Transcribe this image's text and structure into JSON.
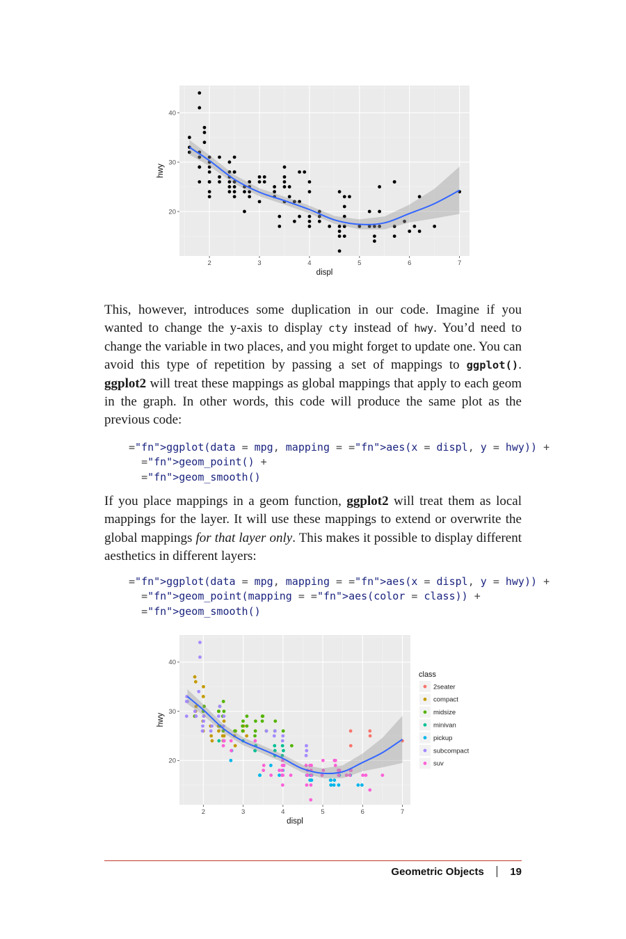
{
  "chart_data": [
    {
      "type": "scatter",
      "xlabel": "displ",
      "ylabel": "hwy",
      "xlim": [
        1.4,
        7.2
      ],
      "ylim": [
        11,
        45.5
      ],
      "x_ticks": [
        2,
        3,
        4,
        5,
        6,
        7
      ],
      "y_ticks": [
        20,
        30,
        40
      ],
      "grid": true,
      "points_color": "#000000",
      "x": [
        1.8,
        1.8,
        1.8,
        1.8,
        1.8,
        1.8,
        1.8,
        2.0,
        2.0,
        2.0,
        2.0,
        2.0,
        2.0,
        2.0,
        2.0,
        1.6,
        1.6,
        1.6,
        2.2,
        2.2,
        2.2,
        2.4,
        2.4,
        2.4,
        2.4,
        2.4,
        2.4,
        2.5,
        2.5,
        2.5,
        2.5,
        2.5,
        2.5,
        2.5,
        2.5,
        2.7,
        2.7,
        2.7,
        2.8,
        2.8,
        2.8,
        2.8,
        3.0,
        3.0,
        3.0,
        3.1,
        3.1,
        3.3,
        3.3,
        3.3,
        3.5,
        3.5,
        3.5,
        3.5,
        3.5,
        3.6,
        3.6,
        3.7,
        3.7,
        3.8,
        3.8,
        3.8,
        3.9,
        4.0,
        4.0,
        4.0,
        4.0,
        4.0,
        4.2,
        4.2,
        4.2,
        4.4,
        4.6,
        4.6,
        4.6,
        4.6,
        4.7,
        4.7,
        4.7,
        4.7,
        4.7,
        4.7,
        4.8,
        5.0,
        5.2,
        5.2,
        5.3,
        5.3,
        5.3,
        5.4,
        5.4,
        5.4,
        5.7,
        5.7,
        5.7,
        5.9,
        6.0,
        6.1,
        6.2,
        6.5,
        7.0,
        1.9,
        1.9,
        1.9,
        3.4,
        3.4,
        4.6,
        5.7,
        6.2
      ],
      "y": [
        29,
        29,
        31,
        32,
        26,
        44,
        41,
        30,
        26,
        29,
        28,
        24,
        26,
        23,
        31,
        33,
        32,
        35,
        26,
        27,
        31,
        28,
        25,
        26,
        27,
        24,
        30,
        26,
        25,
        24,
        23,
        28,
        31,
        28,
        26,
        20,
        25,
        24,
        26,
        25,
        23,
        24,
        26,
        22,
        27,
        26,
        27,
        25,
        24,
        23,
        26,
        22,
        29,
        27,
        25,
        25,
        23,
        22,
        18,
        22,
        19,
        28,
        28,
        17,
        18,
        19,
        24,
        26,
        18,
        20,
        19,
        17,
        17,
        15,
        16,
        24,
        17,
        19,
        17,
        15,
        21,
        23,
        23,
        17,
        20,
        17,
        15,
        14,
        17,
        17,
        20,
        25,
        26,
        26,
        15,
        18,
        16,
        17,
        23,
        17,
        24,
        37,
        36,
        34,
        17,
        19,
        12,
        17,
        16
      ],
      "smooth": {
        "x": [
          1.6,
          2.0,
          2.5,
          3.0,
          3.5,
          4.0,
          4.5,
          5.0,
          5.5,
          6.0,
          6.5,
          7.0
        ],
        "y": [
          33,
          30.3,
          26.5,
          23.9,
          22.2,
          20.4,
          18.3,
          17.4,
          17.7,
          19.6,
          21.6,
          24.3
        ],
        "lower": [
          31.5,
          29.2,
          25.6,
          23.1,
          21.4,
          19.6,
          17.5,
          16.4,
          16.4,
          17.8,
          18.6,
          19.5
        ],
        "upper": [
          34.5,
          31.4,
          27.4,
          24.7,
          23.0,
          21.2,
          19.1,
          18.4,
          19.0,
          21.4,
          24.6,
          29.1
        ]
      }
    },
    {
      "type": "scatter",
      "xlabel": "displ",
      "ylabel": "hwy",
      "xlim": [
        1.4,
        7.2
      ],
      "ylim": [
        11,
        45.5
      ],
      "x_ticks": [
        2,
        3,
        4,
        5,
        6,
        7
      ],
      "y_ticks": [
        20,
        30,
        40
      ],
      "grid": true,
      "legend_placement": "right",
      "legend": {
        "title": "class",
        "entries": [
          {
            "label": "2seater",
            "color": "#f8766d"
          },
          {
            "label": "compact",
            "color": "#c49a00"
          },
          {
            "label": "midsize",
            "color": "#53b400"
          },
          {
            "label": "minivan",
            "color": "#00c094"
          },
          {
            "label": "pickup",
            "color": "#00b6eb"
          },
          {
            "label": "subcompact",
            "color": "#a58aff"
          },
          {
            "label": "suv",
            "color": "#fb61d7"
          }
        ]
      },
      "series": [
        {
          "name": "2seater",
          "x": [
            5.7,
            5.7,
            6.2,
            6.2,
            7.0
          ],
          "y": [
            26,
            23,
            26,
            25,
            24
          ]
        },
        {
          "name": "compact",
          "x": [
            1.8,
            1.8,
            1.8,
            1.8,
            2.0,
            2.0,
            2.0,
            2.8,
            2.8,
            2.8,
            3.1,
            1.8,
            1.8,
            2.0,
            2.0,
            2.4,
            2.4,
            2.5,
            2.5,
            2.2,
            2.2,
            2.2,
            2.5,
            2.5,
            3.0,
            3.0
          ],
          "y": [
            29,
            29,
            31,
            30,
            26,
            28,
            29,
            26,
            25,
            23,
            25,
            36,
            37,
            35,
            33,
            26,
            27,
            28,
            25,
            27,
            25,
            24,
            25,
            24,
            26,
            27
          ]
        },
        {
          "name": "midsize",
          "x": [
            1.8,
            1.8,
            2.0,
            2.0,
            2.8,
            2.8,
            3.1,
            2.4,
            2.4,
            3.1,
            3.5,
            3.6,
            2.4,
            2.4,
            2.5,
            2.5,
            2.5,
            2.5,
            3.3,
            3.3,
            3.3,
            3.0,
            3.0,
            3.0,
            3.5,
            3.5,
            3.8,
            3.8,
            4.0,
            4.2
          ],
          "y": [
            29,
            29,
            31,
            30,
            26,
            26,
            27,
            30,
            31,
            29,
            29,
            26,
            27,
            30,
            30,
            26,
            29,
            32,
            25,
            28,
            26,
            27,
            26,
            28,
            29,
            28,
            26,
            28,
            26,
            23
          ]
        },
        {
          "name": "minivan",
          "x": [
            2.4,
            3.0,
            3.3,
            3.3,
            3.3,
            3.8,
            3.8,
            3.8,
            4.0,
            4.0,
            4.0
          ],
          "y": [
            24,
            24,
            22,
            22,
            23,
            22,
            21,
            23,
            23,
            22,
            21
          ]
        },
        {
          "name": "pickup",
          "x": [
            2.7,
            2.7,
            3.4,
            3.4,
            4.7,
            4.7,
            4.7,
            5.2,
            5.2,
            5.3,
            5.3,
            5.7,
            5.9,
            3.7,
            3.9,
            4.7,
            4.7,
            4.7,
            4.7,
            5.2,
            5.2,
            4.0,
            4.0,
            4.0,
            4.6,
            5.4,
            5.4,
            5.4,
            6.0
          ],
          "y": [
            20,
            22,
            17,
            17,
            16,
            17,
            16,
            15,
            16,
            15,
            16,
            17,
            15,
            19,
            17,
            17,
            17,
            17,
            16,
            16,
            15,
            18,
            17,
            19,
            17,
            17,
            17,
            15,
            15
          ]
        },
        {
          "name": "subcompact",
          "x": [
            1.8,
            1.8,
            1.8,
            2.0,
            2.0,
            2.0,
            2.5,
            2.5,
            2.5,
            2.2,
            2.2,
            1.6,
            1.6,
            1.6,
            1.6,
            1.6,
            1.9,
            1.9,
            1.9,
            3.8,
            3.8,
            4.0,
            4.0,
            4.6,
            4.6,
            4.6,
            5.4,
            2.4,
            2.4,
            3.6,
            2.0,
            2.0
          ],
          "y": [
            29,
            29,
            30,
            26,
            27,
            29,
            24,
            27,
            29,
            26,
            27,
            33,
            32,
            32,
            29,
            32,
            44,
            41,
            34,
            26,
            25,
            24,
            25,
            21,
            22,
            23,
            18,
            31,
            29,
            26,
            26,
            28
          ]
        },
        {
          "name": "suv",
          "x": [
            5.7,
            5.7,
            6.2,
            6.5,
            4.2,
            4.7,
            4.7,
            4.7,
            4.7,
            5.3,
            5.3,
            5.7,
            6.0,
            4.0,
            4.0,
            4.6,
            4.6,
            5.0,
            4.0,
            4.0,
            4.0,
            4.0,
            4.6,
            5.4,
            5.4,
            2.5,
            2.5,
            2.7,
            2.7,
            4.0,
            4.0,
            4.7,
            4.7,
            3.5,
            3.5,
            4.0,
            4.0,
            4.6,
            4.6,
            3.7,
            3.9,
            4.7,
            5.3,
            5.3,
            5.4,
            5.0,
            5.0,
            5.6,
            6.1,
            2.5,
            3.3
          ],
          "y": [
            17,
            18,
            14,
            17,
            17,
            19,
            19,
            12,
            17,
            20,
            20,
            18,
            17,
            19,
            20,
            19,
            18,
            17,
            17,
            19,
            15,
            17,
            17,
            17,
            18,
            23,
            24,
            22,
            24,
            18,
            19,
            18,
            15,
            19,
            18,
            17,
            19,
            17,
            15,
            17,
            18,
            19,
            19,
            20,
            18,
            20,
            18,
            17,
            17,
            24,
            24
          ]
        }
      ],
      "smooth": {
        "x": [
          1.6,
          2.0,
          2.5,
          3.0,
          3.5,
          4.0,
          4.5,
          5.0,
          5.5,
          6.0,
          6.5,
          7.0
        ],
        "y": [
          33,
          30.3,
          26.5,
          23.9,
          22.2,
          20.4,
          18.3,
          17.4,
          17.7,
          19.6,
          21.6,
          24.3
        ],
        "lower": [
          31.5,
          29.2,
          25.6,
          23.1,
          21.4,
          19.6,
          17.5,
          16.4,
          16.4,
          17.8,
          18.6,
          19.5
        ],
        "upper": [
          34.5,
          31.4,
          27.4,
          24.7,
          23.0,
          21.2,
          19.1,
          18.4,
          19.0,
          21.4,
          24.6,
          29.1
        ]
      }
    }
  ],
  "text": {
    "para1": [
      {
        "t": "This, however, introduces some duplication in our code. Imagine if you wanted to change the y-axis to display "
      },
      {
        "t": "cty",
        "code": true
      },
      {
        "t": " instead of "
      },
      {
        "t": "hwy",
        "code": true
      },
      {
        "t": ". You’d need to change the variable in two places, and you might forget to update one. You can avoid this type of repetition by passing a set of mappings to "
      },
      {
        "t": "ggplot()",
        "code": true,
        "bold": true
      },
      {
        "t": ". "
      },
      {
        "t": "ggplot2",
        "bold": true
      },
      {
        "t": " will treat these mappings as global mappings that apply to each geom in the graph. In other words, this code will produce the same plot as the previous code:"
      }
    ],
    "para2": [
      {
        "t": "If you place mappings in a geom function, "
      },
      {
        "t": "ggplot2",
        "bold": true
      },
      {
        "t": " will treat them as local mappings for the layer. It will use these mappings to extend or overwrite the global mappings "
      },
      {
        "t": "for that layer only",
        "italic": true
      },
      {
        "t": ". This makes it possible to display different aesthetics in different layers:"
      }
    ],
    "code1": [
      "ggplot(data = mpg, mapping = aes(x = displ, y = hwy)) +",
      "  geom_point() +",
      "  geom_smooth()"
    ],
    "code2": [
      "ggplot(data = mpg, mapping = aes(x = displ, y = hwy)) +",
      "  geom_point(mapping = aes(color = class)) +",
      "  geom_smooth()"
    ]
  },
  "footer": {
    "section": "Geometric Objects",
    "page": "19"
  },
  "colors": {
    "panel_bg": "#ebebeb",
    "grid": "#ffffff",
    "smooth_line": "#3366ff",
    "ribbon": "#999999",
    "rule": "#c0392b"
  }
}
